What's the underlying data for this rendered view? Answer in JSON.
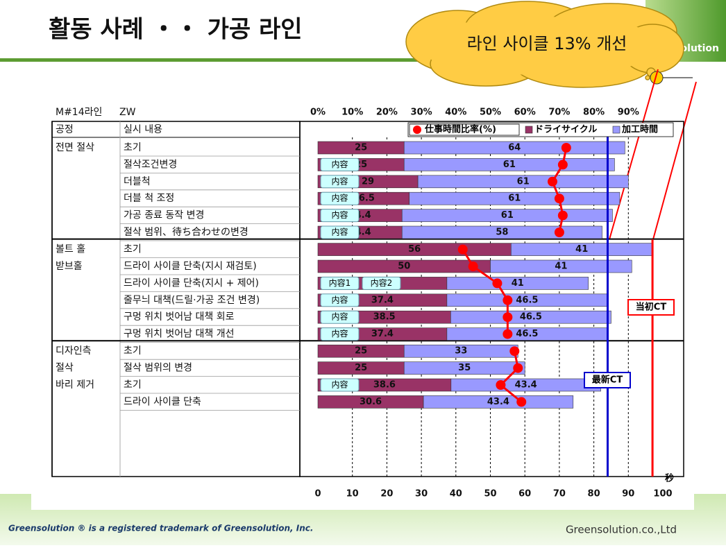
{
  "header": {
    "title": "활동 사례 ・・ 가공 라인",
    "logo": "olution"
  },
  "callout": "라인 사이클 13% 개선",
  "footer": {
    "trademark": "Greensolution ® is a registered trademark of Greensolution, Inc.",
    "company": "Greensolution.co.,Ltd"
  },
  "chart_data": {
    "type": "bar",
    "orientation": "horizontal",
    "stacked": true,
    "line_name": "M#14라인",
    "model": "ZW",
    "column_headers": [
      "공정",
      "실시 내용"
    ],
    "process": [
      "전면 절삭",
      null,
      null,
      null,
      null,
      null,
      "볼트 홀",
      "받브홀",
      null,
      null,
      null,
      null,
      "디자인측",
      "절삭",
      "바리 제거",
      null
    ],
    "categories": [
      "초기",
      "절삭조건변경",
      "더블척",
      "더블 척 조정",
      "가공 종료 동작 변경",
      "절삭 범위、待ち合わせの변경",
      "초기",
      "드라이 사이클 단축(지시 재검토)",
      "드라이 사이클 단축(지시 + 제어)",
      "줄무늬 대책(드릴·가공 조건 변경)",
      "구멍 위치 벗어남 대책 회로",
      "구멍 위치 벗어남 대책 개선",
      "초기",
      "절삭 범위의 변경",
      "초기",
      "드라이 사이클 단축"
    ],
    "buttons": [
      null,
      [
        "内容"
      ],
      [
        "内容"
      ],
      [
        "内容"
      ],
      [
        "内容"
      ],
      [
        "内容"
      ],
      null,
      null,
      [
        "内容1",
        "内容2"
      ],
      [
        "内容"
      ],
      [
        "内容"
      ],
      [
        "内容"
      ],
      null,
      null,
      [
        "内容"
      ],
      null
    ],
    "series": [
      {
        "name": "ドライサイクル",
        "color": "#993366",
        "values": [
          25,
          25,
          29,
          26.5,
          24.4,
          24.4,
          56,
          50,
          37.4,
          37.4,
          38.5,
          37.4,
          25,
          25,
          38.6,
          30.6
        ]
      },
      {
        "name": "加工時間",
        "color": "#9999ff",
        "values": [
          64,
          61,
          61,
          61,
          61,
          58,
          41,
          41,
          41,
          46.5,
          46.5,
          46.5,
          33,
          35,
          43.4,
          43.4
        ]
      },
      {
        "name": "仕事時間比率(%)",
        "color": "#ff0000",
        "axis": "x2",
        "values": [
          72,
          71,
          68,
          70,
          71,
          70,
          42,
          45,
          52,
          55,
          55,
          55,
          57,
          58,
          53,
          59
        ]
      }
    ],
    "xlim": [
      0,
      100
    ],
    "xticks": [
      0,
      10,
      20,
      30,
      40,
      50,
      60,
      70,
      80,
      90,
      100
    ],
    "xlabel": "秒",
    "x2lim": [
      0,
      100
    ],
    "x2ticks": [
      {
        "value": 0,
        "label": "0%"
      },
      {
        "value": 10,
        "label": "10%"
      },
      {
        "value": 20,
        "label": "20%"
      },
      {
        "value": 30,
        "label": "30%"
      },
      {
        "value": 40,
        "label": "40%"
      },
      {
        "value": 50,
        "label": "50%"
      },
      {
        "value": 60,
        "label": "60%"
      },
      {
        "value": 70,
        "label": "70%"
      },
      {
        "value": 80,
        "label": "80%"
      },
      {
        "value": 90,
        "label": "90%"
      }
    ],
    "grid": true,
    "reference_lines": [
      {
        "label": "最新CT",
        "value": 84,
        "color": "#0000cc"
      },
      {
        "label": "当初CT",
        "value": 97,
        "color": "#ff0000"
      }
    ]
  }
}
